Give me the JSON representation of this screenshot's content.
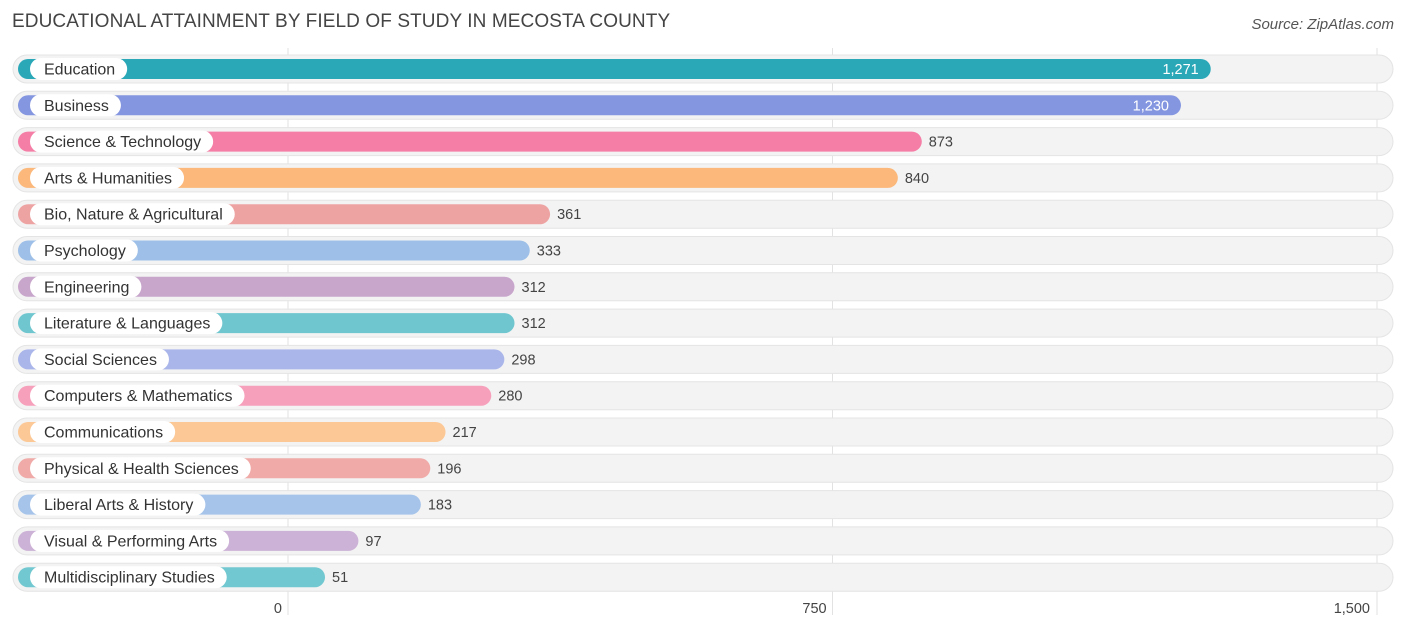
{
  "header": {
    "title": "EDUCATIONAL ATTAINMENT BY FIELD OF STUDY IN MECOSTA COUNTY",
    "source": "Source: ZipAtlas.com"
  },
  "chart_data": {
    "type": "bar",
    "orientation": "horizontal",
    "title": "EDUCATIONAL ATTAINMENT BY FIELD OF STUDY IN MECOSTA COUNTY",
    "categories": [
      "Education",
      "Business",
      "Science & Technology",
      "Arts & Humanities",
      "Bio, Nature & Agricultural",
      "Psychology",
      "Engineering",
      "Literature & Languages",
      "Social Sciences",
      "Computers & Mathematics",
      "Communications",
      "Physical & Health Sciences",
      "Liberal Arts & History",
      "Visual & Performing Arts",
      "Multidisciplinary Studies"
    ],
    "values": [
      1271,
      1230,
      873,
      840,
      361,
      333,
      312,
      312,
      298,
      280,
      217,
      196,
      183,
      97,
      51
    ],
    "value_labels": [
      "1,271",
      "1,230",
      "873",
      "840",
      "361",
      "333",
      "312",
      "312",
      "298",
      "280",
      "217",
      "196",
      "183",
      "97",
      "51"
    ],
    "colors": [
      "#2aa8b8",
      "#8496e0",
      "#f57ea6",
      "#fbb87a",
      "#eea3a3",
      "#9ec0e8",
      "#c8a6cc",
      "#6fc6cf",
      "#aab6ea",
      "#f7a0bc",
      "#fcc896",
      "#f0aaa8",
      "#a6c4ea",
      "#ccb2d6",
      "#72c8d0"
    ],
    "xlim": [
      0,
      1500
    ],
    "xticks": [
      0,
      750,
      1500
    ],
    "xtick_labels": [
      "0",
      "750",
      "1,500"
    ],
    "xlabel": "",
    "ylabel": "",
    "grid": true
  }
}
